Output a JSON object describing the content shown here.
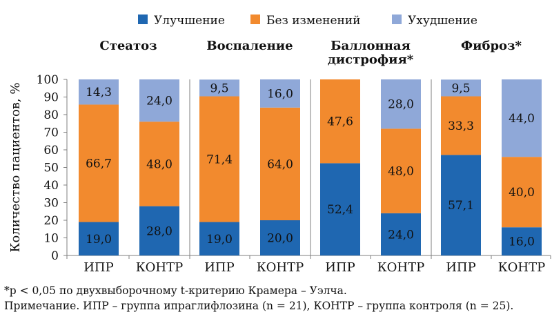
{
  "chart_data": {
    "type": "bar",
    "stacked": true,
    "ylabel": "Количество пациентов, %",
    "ylim": [
      0,
      100
    ],
    "yticks": [
      "0",
      "10",
      "20",
      "30",
      "40",
      "50",
      "60",
      "70",
      "80",
      "90",
      "100"
    ],
    "legend": {
      "placement": "top",
      "entries": [
        "Улучшение",
        "Без изменений",
        "Ухудшение"
      ]
    },
    "colors": {
      "Улучшение": "#1f67b1",
      "Без изменений": "#f28a2e",
      "Ухудшение": "#8fa8d8"
    },
    "groups": [
      {
        "title": [
          "Стеатоз"
        ],
        "categories": [
          "ИПР",
          "КОНТР"
        ]
      },
      {
        "title": [
          "Воспаление"
        ],
        "categories": [
          "ИПР",
          "КОНТР"
        ]
      },
      {
        "title": [
          "Баллонная",
          "дистрофия*"
        ],
        "categories": [
          "ИПР",
          "КОНТР"
        ]
      },
      {
        "title": [
          "Фиброз*"
        ],
        "categories": [
          "ИПР",
          "КОНТР"
        ]
      }
    ],
    "series": [
      {
        "name": "Улучшение",
        "values": [
          19.0,
          28.0,
          19.0,
          20.0,
          52.4,
          24.0,
          57.1,
          16.0
        ],
        "labels": [
          "19,0",
          "28,0",
          "19,0",
          "20,0",
          "52,4",
          "24,0",
          "57,1",
          "16,0"
        ]
      },
      {
        "name": "Без изменений",
        "values": [
          66.7,
          48.0,
          71.4,
          64.0,
          47.6,
          48.0,
          33.3,
          40.0
        ],
        "labels": [
          "66,7",
          "48,0",
          "71,4",
          "64,0",
          "47,6",
          "48,0",
          "33,3",
          "40,0"
        ]
      },
      {
        "name": "Ухудшение",
        "values": [
          14.3,
          24.0,
          9.5,
          16.0,
          0,
          28.0,
          9.5,
          44.0
        ],
        "labels": [
          "14,3",
          "24,0",
          "9,5",
          "16,0",
          "",
          "28,0",
          "9,5",
          "44,0"
        ]
      }
    ]
  },
  "footnotes": {
    "significance": "*p < 0,05 по двухвыборочному t-критерию Крамера – Уэлча.",
    "note": "Примечание. ИПР – группа ипраглифлозина (n = 21), КОНТР – группа контроля (n = 25)."
  }
}
